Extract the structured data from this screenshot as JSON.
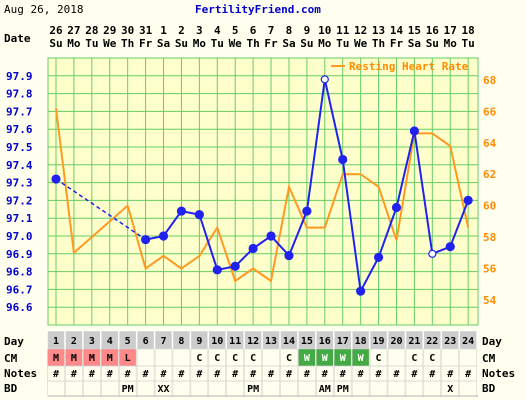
{
  "header": {
    "date": "Aug 26, 2018",
    "site": "FertilityFriend.com",
    "date_label": "Date"
  },
  "colors": {
    "background": "#fffff0",
    "plot_background": "#ffffcc",
    "grid": "#66cc66",
    "temp_line": "#2222ee",
    "heart_line": "#ff9922",
    "axis_left_text": "#0000cc",
    "axis_right_text": "#ff8c00",
    "day_cell": "#cccccc",
    "menses": "#ff8888",
    "wet": "#44aa44"
  },
  "chart_data": {
    "type": "line",
    "x": [
      1,
      2,
      3,
      4,
      5,
      6,
      7,
      8,
      9,
      10,
      11,
      12,
      13,
      14,
      15,
      16,
      17,
      18,
      19,
      20,
      21,
      22,
      23,
      24
    ],
    "dates": [
      "26",
      "27",
      "28",
      "29",
      "30",
      "31",
      "1",
      "2",
      "3",
      "4",
      "5",
      "6",
      "7",
      "8",
      "9",
      "10",
      "11",
      "12",
      "13",
      "14",
      "15",
      "16",
      "17",
      "18"
    ],
    "weekdays": [
      "Su",
      "Mo",
      "Tu",
      "We",
      "Th",
      "Fr",
      "Sa",
      "Su",
      "Mo",
      "Tu",
      "We",
      "Th",
      "Fr",
      "Sa",
      "Su",
      "Mo",
      "Tu",
      "We",
      "Th",
      "Fr",
      "Sa",
      "Su",
      "Mo",
      "Tu"
    ],
    "series": [
      {
        "name": "",
        "axis": "left",
        "values": [
          97.32,
          null,
          null,
          null,
          null,
          96.98,
          97.0,
          97.14,
          97.12,
          96.81,
          96.83,
          96.93,
          97.0,
          96.89,
          97.14,
          97.88,
          97.43,
          96.69,
          96.88,
          97.16,
          97.59,
          96.9,
          96.94,
          97.2
        ],
        "marker_style": [
          "filled",
          null,
          null,
          null,
          null,
          "filled",
          "filled",
          "filled",
          "filled",
          "filled",
          "filled",
          "filled",
          "filled",
          "filled",
          "filled",
          "open",
          "filled",
          "filled",
          "filled",
          "filled",
          "filled",
          "open",
          "filled",
          "filled"
        ],
        "dashed_gap": [
          1,
          6
        ]
      },
      {
        "name": "Resting Heart Rate",
        "axis": "right",
        "values": [
          66.2,
          57.0,
          null,
          null,
          60.0,
          56.0,
          56.8,
          56.0,
          56.8,
          58.6,
          55.2,
          56.0,
          55.2,
          61.2,
          58.6,
          58.6,
          62.0,
          62.0,
          61.2,
          57.8,
          64.6,
          64.6,
          63.8,
          58.6
        ]
      }
    ],
    "ylim_left": [
      96.5,
      98.0
    ],
    "yticks_left": [
      "97.9",
      "97.8",
      "97.7",
      "97.6",
      "97.5",
      "97.4",
      "97.3",
      "97.2",
      "97.1",
      "97.0",
      "96.9",
      "96.8",
      "96.7",
      "96.6"
    ],
    "ylim_right": [
      52.4,
      69.4
    ],
    "yticks_right": [
      "68",
      "66",
      "64",
      "62",
      "60",
      "58",
      "56",
      "54"
    ],
    "legend": "top-right",
    "rows": {
      "day_label": "Day",
      "cm_label": "CM",
      "notes_label": "Notes",
      "bd_label": "BD",
      "cm": [
        "M",
        "M",
        "M",
        "M",
        "L",
        "",
        "",
        "",
        "C",
        "C",
        "C",
        "C",
        "",
        "C",
        "W",
        "W",
        "W",
        "W",
        "C",
        "",
        "C",
        "C",
        "",
        ""
      ],
      "cm_kind": [
        "menses",
        "menses",
        "menses",
        "menses",
        "menses",
        "",
        "",
        "",
        "plain",
        "plain",
        "plain",
        "plain",
        "",
        "plain",
        "wet",
        "wet",
        "wet",
        "wet",
        "plain",
        "",
        "plain",
        "plain",
        "",
        ""
      ],
      "notes": [
        "#",
        "#",
        "#",
        "#",
        "#",
        "#",
        "#",
        "#",
        "#",
        "#",
        "#",
        "#",
        "#",
        "#",
        "#",
        "#",
        "#",
        "#",
        "#",
        "#",
        "#",
        "#",
        "#",
        "#"
      ],
      "bd": [
        "",
        "",
        "",
        "",
        "PM",
        "",
        "XX",
        "",
        "",
        "",
        "",
        "PM",
        "",
        "",
        "",
        "AM",
        "PM",
        "",
        "",
        "",
        "",
        "",
        "X",
        ""
      ]
    }
  }
}
